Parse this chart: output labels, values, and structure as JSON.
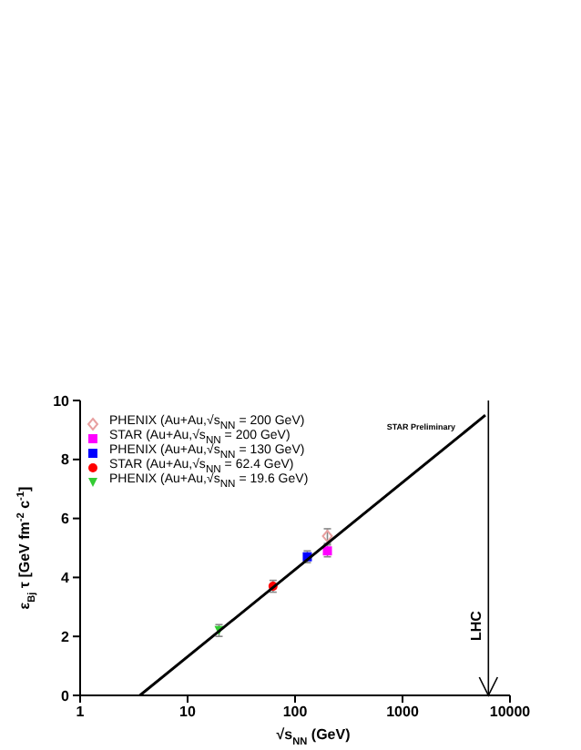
{
  "chart_data": {
    "type": "scatter",
    "xlabel": "√s$_{NN}$ (GeV)",
    "ylabel": "ε$_{Bj}$ τ [GeV fm$^{-2}$ c$^{-1}$]",
    "log": "x",
    "xlim": [
      1,
      10000
    ],
    "xticks": [
      1,
      10,
      100,
      1000,
      10000
    ],
    "ylim": [
      0,
      10
    ],
    "yticks": [
      0,
      2,
      4,
      6,
      8,
      10
    ],
    "grid": false,
    "legend": "top left",
    "series": [
      {
        "name": "PHENIX (Au+Au,√s$_{NN}$ = 200 GeV)",
        "color": "#e8a0a0",
        "marker": "diamond",
        "x": [
          200
        ],
        "values": [
          5.4
        ],
        "errors": [
          0.25
        ]
      },
      {
        "name": "STAR (Au+Au,√s$_{NN}$ = 200 GeV)",
        "color": "#ff00ff",
        "marker": "square",
        "x": [
          200
        ],
        "values": [
          4.9
        ],
        "errors": [
          0.2
        ]
      },
      {
        "name": "PHENIX (Au+Au,√s$_{NN}$ = 130 GeV)",
        "color": "#0000ff",
        "marker": "square",
        "x": [
          130
        ],
        "values": [
          4.7
        ],
        "errors": [
          0.2
        ]
      },
      {
        "name": "STAR (Au+Au,√s$_{NN}$ = 62.4 GeV)",
        "color": "#ff0000",
        "marker": "circle",
        "x": [
          62.4
        ],
        "values": [
          3.7
        ],
        "errors": [
          0.2
        ]
      },
      {
        "name": "PHENIX (Au+Au,√s$_{NN}$ = 19.6 GeV)",
        "color": "#33cc33",
        "marker": "triangle",
        "x": [
          19.6
        ],
        "values": [
          2.2
        ],
        "errors": [
          0.2
        ]
      },
      {
        "type": "line",
        "color": "#000000",
        "marker": "none",
        "x": [
          3.6,
          5900
        ],
        "values": [
          0,
          9.5
        ]
      }
    ],
    "ref_lines": [
      {
        "axis": "x",
        "value": 6300,
        "label": "LHC",
        "color": "#000000"
      }
    ],
    "annotations": [
      "STAR Preliminary"
    ]
  }
}
